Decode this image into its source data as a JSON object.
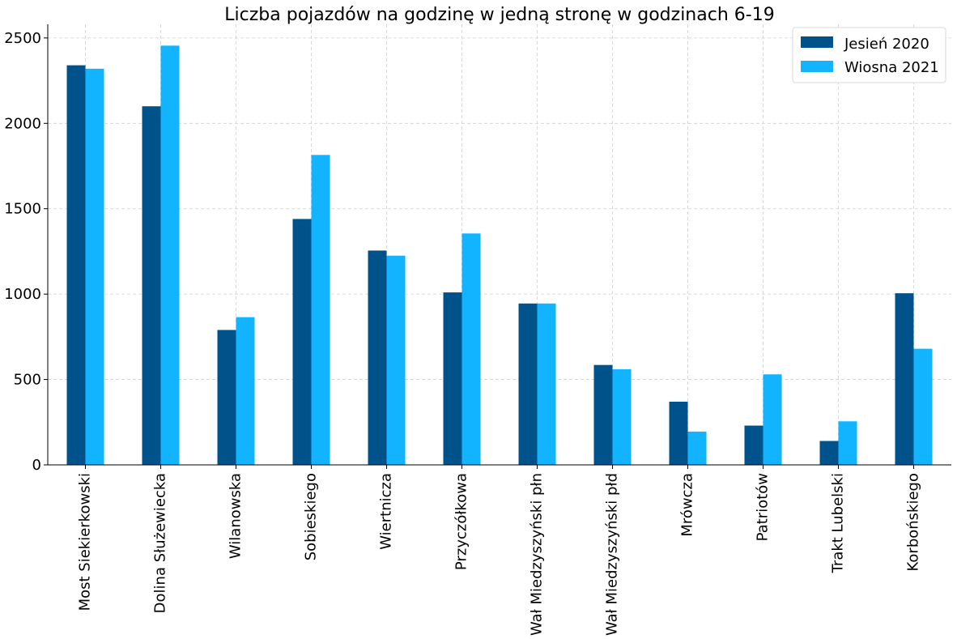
{
  "chart_data": {
    "type": "bar",
    "title": "Liczba pojazdów na godzinę w jedną stronę w godzinach 6-19",
    "xlabel": "",
    "ylabel": "",
    "ylim": [
      0,
      2580
    ],
    "yticks": [
      0,
      500,
      1000,
      1500,
      2000,
      2500
    ],
    "grid": true,
    "legend_position": "top-right",
    "categories": [
      "Most Siekierkowski",
      "Dolina Służewiecka",
      "Wilanowska",
      "Sobieskiego",
      "Wiertnicza",
      "Przyczółkowa",
      "Wał Miedzyszyński płn",
      "Wał Miedzyszyński płd",
      "Mrówcza",
      "Patriotów",
      "Trakt Lubelski",
      "Korbońskiego"
    ],
    "series": [
      {
        "name": "Jesień 2020",
        "color": "#00538a",
        "values": [
          2340,
          2100,
          790,
          1440,
          1255,
          1010,
          945,
          585,
          370,
          230,
          140,
          1005
        ]
      },
      {
        "name": "Wiosna 2021",
        "color": "#12b4ff",
        "values": [
          2320,
          2455,
          865,
          1815,
          1225,
          1355,
          945,
          560,
          195,
          530,
          255,
          680
        ]
      }
    ]
  }
}
